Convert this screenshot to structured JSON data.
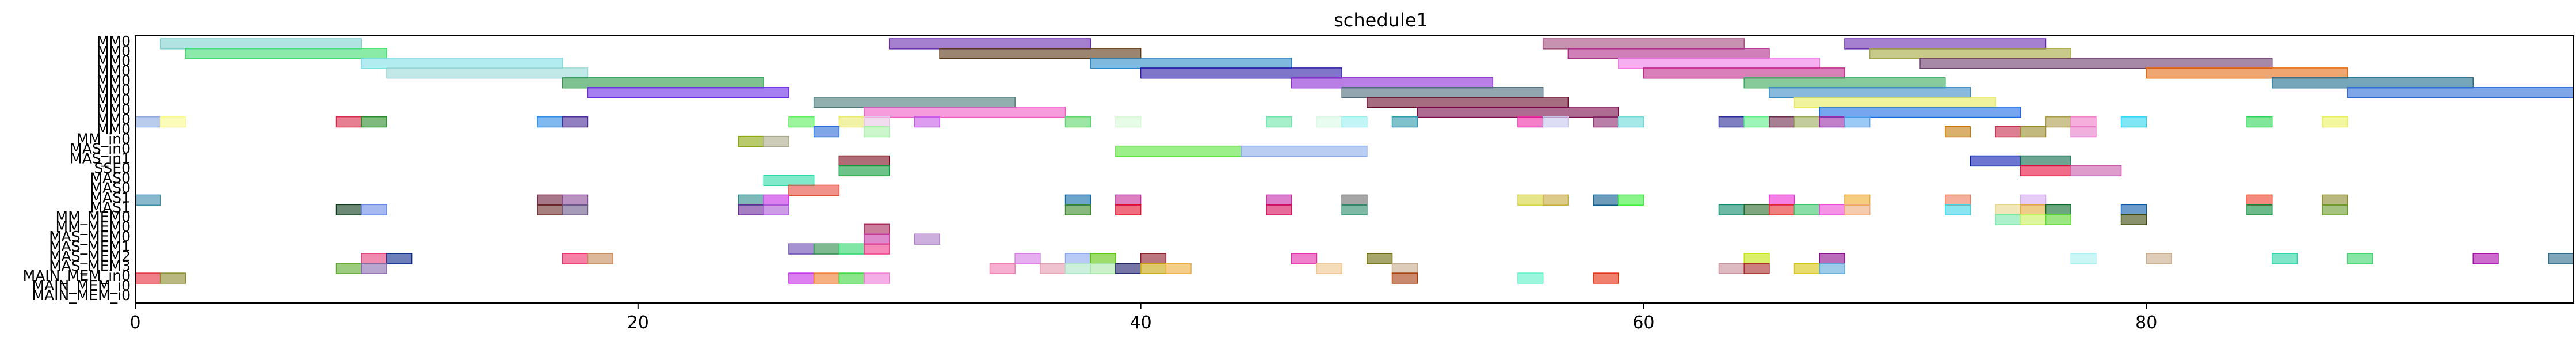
{
  "chart_data": {
    "type": "gantt",
    "title": "schedule1",
    "xlabel": "",
    "ylabel": "",
    "xlim": [
      0,
      97
    ],
    "xticks": [
      0,
      20,
      40,
      60,
      80
    ],
    "grid": false,
    "rows": [
      "MM0",
      "MM0",
      "MM0",
      "MM0",
      "MM0",
      "MM0",
      "MM0",
      "MM0",
      "MM0",
      "MM0",
      "MM_in0",
      "MAS_in0",
      "MAS_in1",
      "SSE0",
      "MAS0",
      "MAS0",
      "MAS1",
      "MAS1",
      "MM_MEM0",
      "MM_MEM0",
      "MAS_MEM0",
      "MAS_MEM1",
      "MAS_MEM2",
      "MAS_MEM3",
      "MAIN_MEM_in0",
      "MAIN_MEM_i0",
      "MAIN_MEM_i0"
    ],
    "tasks": [
      {
        "row": 0,
        "start": 1,
        "end": 9,
        "color": "#7fd1d1"
      },
      {
        "row": 0,
        "start": 30,
        "end": 38,
        "color": "#6a2bb0"
      },
      {
        "row": 0,
        "start": 56,
        "end": 64,
        "color": "#a04a7a"
      },
      {
        "row": 0,
        "start": 68,
        "end": 76,
        "color": "#6a2bb0"
      },
      {
        "row": 1,
        "start": 2,
        "end": 10,
        "color": "#3cdc6c"
      },
      {
        "row": 1,
        "start": 32,
        "end": 40,
        "color": "#5a3410"
      },
      {
        "row": 1,
        "start": 57,
        "end": 65,
        "color": "#b02a8a"
      },
      {
        "row": 1,
        "start": 69,
        "end": 77,
        "color": "#a3a63a"
      },
      {
        "row": 2,
        "start": 9,
        "end": 17,
        "color": "#7fe0e6"
      },
      {
        "row": 2,
        "start": 38,
        "end": 46,
        "color": "#2a8ac6"
      },
      {
        "row": 2,
        "start": 59,
        "end": 67,
        "color": "#f07ae8"
      },
      {
        "row": 2,
        "start": 71,
        "end": 85,
        "color": "#6a3a6a"
      },
      {
        "row": 3,
        "start": 10,
        "end": 18,
        "color": "#9ad8d8"
      },
      {
        "row": 3,
        "start": 40,
        "end": 48,
        "color": "#2a1aa6"
      },
      {
        "row": 3,
        "start": 60,
        "end": 68,
        "color": "#c02a8a"
      },
      {
        "row": 3,
        "start": 80,
        "end": 88,
        "color": "#e66a10"
      },
      {
        "row": 4,
        "start": 17,
        "end": 25,
        "color": "#2a9a4a"
      },
      {
        "row": 4,
        "start": 46,
        "end": 54,
        "color": "#8a2ad6"
      },
      {
        "row": 4,
        "start": 64,
        "end": 72,
        "color": "#3aaa5a"
      },
      {
        "row": 4,
        "start": 85,
        "end": 93,
        "color": "#1a6a8a"
      },
      {
        "row": 5,
        "start": 18,
        "end": 26,
        "color": "#6a2ae6"
      },
      {
        "row": 5,
        "start": 48,
        "end": 56,
        "color": "#4a6a7a"
      },
      {
        "row": 5,
        "start": 65,
        "end": 73,
        "color": "#3a8ac6"
      },
      {
        "row": 5,
        "start": 88,
        "end": 97,
        "color": "#2a6ad6"
      },
      {
        "row": 6,
        "start": 27,
        "end": 35,
        "color": "#4a7a7a"
      },
      {
        "row": 6,
        "start": 49,
        "end": 57,
        "color": "#6a0a2a"
      },
      {
        "row": 6,
        "start": 66,
        "end": 74,
        "color": "#e6ea5a"
      },
      {
        "row": 7,
        "start": 29,
        "end": 37,
        "color": "#f05ac6"
      },
      {
        "row": 7,
        "start": 51,
        "end": 59,
        "color": "#7a0a4a"
      },
      {
        "row": 7,
        "start": 67,
        "end": 75,
        "color": "#1a6ae6"
      },
      {
        "row": 8,
        "start": 0,
        "end": 1,
        "color": "#8aaade"
      },
      {
        "row": 8,
        "start": 1,
        "end": 2,
        "color": "#fafa8a"
      },
      {
        "row": 8,
        "start": 8,
        "end": 9,
        "color": "#d62a4a"
      },
      {
        "row": 8,
        "start": 9,
        "end": 10,
        "color": "#2a8a2a"
      },
      {
        "row": 8,
        "start": 16,
        "end": 17,
        "color": "#2a8ae6"
      },
      {
        "row": 8,
        "start": 17,
        "end": 18,
        "color": "#4a2a9a"
      },
      {
        "row": 8,
        "start": 26,
        "end": 27,
        "color": "#5af05a"
      },
      {
        "row": 8,
        "start": 28,
        "end": 29,
        "color": "#eaea6a"
      },
      {
        "row": 8,
        "start": 29,
        "end": 30,
        "color": "#eac6e6"
      },
      {
        "row": 8,
        "start": 31,
        "end": 32,
        "color": "#c65ae6"
      },
      {
        "row": 8,
        "start": 37,
        "end": 38,
        "color": "#5ad66a"
      },
      {
        "row": 8,
        "start": 39,
        "end": 40,
        "color": "#d6fad6"
      },
      {
        "row": 8,
        "start": 45,
        "end": 46,
        "color": "#6ae6aa"
      },
      {
        "row": 8,
        "start": 47,
        "end": 48,
        "color": "#dafae6"
      },
      {
        "row": 8,
        "start": 48,
        "end": 49,
        "color": "#9af0f0"
      },
      {
        "row": 8,
        "start": 50,
        "end": 51,
        "color": "#2a9aaa"
      },
      {
        "row": 8,
        "start": 55,
        "end": 56,
        "color": "#f02aa6"
      },
      {
        "row": 8,
        "start": 56,
        "end": 57,
        "color": "#c6c6f0"
      },
      {
        "row": 8,
        "start": 58,
        "end": 59,
        "color": "#8a2a6a"
      },
      {
        "row": 8,
        "start": 59,
        "end": 60,
        "color": "#6adada"
      },
      {
        "row": 8,
        "start": 63,
        "end": 64,
        "color": "#2a2a9a"
      },
      {
        "row": 8,
        "start": 64,
        "end": 65,
        "color": "#5af08a"
      },
      {
        "row": 8,
        "start": 65,
        "end": 66,
        "color": "#6a2a4a"
      },
      {
        "row": 8,
        "start": 66,
        "end": 67,
        "color": "#9aaa5a"
      },
      {
        "row": 8,
        "start": 67,
        "end": 68,
        "color": "#9a2aa6"
      },
      {
        "row": 8,
        "start": 68,
        "end": 69,
        "color": "#5aa6f0"
      },
      {
        "row": 8,
        "start": 76,
        "end": 77,
        "color": "#aa9a4a"
      },
      {
        "row": 8,
        "start": 77,
        "end": 78,
        "color": "#f07ac6"
      },
      {
        "row": 8,
        "start": 79,
        "end": 80,
        "color": "#2ad6f0"
      },
      {
        "row": 8,
        "start": 84,
        "end": 85,
        "color": "#2ad65a"
      },
      {
        "row": 8,
        "start": 87,
        "end": 88,
        "color": "#eaf05a"
      },
      {
        "row": 9,
        "start": 27,
        "end": 28,
        "color": "#2a6ad6"
      },
      {
        "row": 9,
        "start": 29,
        "end": 30,
        "color": "#aaf0aa"
      },
      {
        "row": 9,
        "start": 72,
        "end": 73,
        "color": "#c67a0a"
      },
      {
        "row": 9,
        "start": 74,
        "end": 75,
        "color": "#c62a4a"
      },
      {
        "row": 9,
        "start": 75,
        "end": 76,
        "color": "#9a8a2a"
      },
      {
        "row": 9,
        "start": 77,
        "end": 78,
        "color": "#e67ac6"
      },
      {
        "row": 10,
        "start": 24,
        "end": 25,
        "color": "#8aa60a"
      },
      {
        "row": 10,
        "start": 25,
        "end": 26,
        "color": "#aaaa8a"
      },
      {
        "row": 11,
        "start": 39,
        "end": 44,
        "color": "#5ae63a"
      },
      {
        "row": 11,
        "start": 44,
        "end": 49,
        "color": "#8aaaea"
      },
      {
        "row": 12,
        "start": 28,
        "end": 30,
        "color": "#7a0a1a"
      },
      {
        "row": 12,
        "start": 73,
        "end": 75,
        "color": "#0a1ab0"
      },
      {
        "row": 12,
        "start": 75,
        "end": 77,
        "color": "#0a6a4a"
      },
      {
        "row": 13,
        "start": 28,
        "end": 30,
        "color": "#0a9a3a"
      },
      {
        "row": 13,
        "start": 75,
        "end": 77,
        "color": "#e60a3a"
      },
      {
        "row": 13,
        "start": 77,
        "end": 79,
        "color": "#c65aaa"
      },
      {
        "row": 14,
        "start": 25,
        "end": 27,
        "color": "#2adaa6"
      },
      {
        "row": 15,
        "start": 26,
        "end": 28,
        "color": "#e64a3a"
      },
      {
        "row": 16,
        "start": 0,
        "end": 1,
        "color": "#3a8aaa"
      },
      {
        "row": 16,
        "start": 16,
        "end": 17,
        "color": "#6a1a3a"
      },
      {
        "row": 16,
        "start": 17,
        "end": 18,
        "color": "#8a4a9a"
      },
      {
        "row": 16,
        "start": 24,
        "end": 25,
        "color": "#2a8a8a"
      },
      {
        "row": 16,
        "start": 25,
        "end": 26,
        "color": "#c62ae6"
      },
      {
        "row": 16,
        "start": 37,
        "end": 38,
        "color": "#0a6aaa"
      },
      {
        "row": 16,
        "start": 39,
        "end": 40,
        "color": "#c62a9a"
      },
      {
        "row": 16,
        "start": 45,
        "end": 46,
        "color": "#c62aa6"
      },
      {
        "row": 16,
        "start": 48,
        "end": 49,
        "color": "#6a6a6a"
      },
      {
        "row": 16,
        "start": 55,
        "end": 56,
        "color": "#d6d63a"
      },
      {
        "row": 16,
        "start": 56,
        "end": 57,
        "color": "#c6aa3a"
      },
      {
        "row": 16,
        "start": 58,
        "end": 59,
        "color": "#0a5a8a"
      },
      {
        "row": 16,
        "start": 59,
        "end": 60,
        "color": "#3af03a"
      },
      {
        "row": 16,
        "start": 65,
        "end": 66,
        "color": "#f02ad6"
      },
      {
        "row": 16,
        "start": 68,
        "end": 69,
        "color": "#f0aa2a"
      },
      {
        "row": 16,
        "start": 72,
        "end": 73,
        "color": "#f07a5a"
      },
      {
        "row": 16,
        "start": 75,
        "end": 76,
        "color": "#d6aaf0"
      },
      {
        "row": 16,
        "start": 84,
        "end": 85,
        "color": "#f03a2a"
      },
      {
        "row": 16,
        "start": 87,
        "end": 88,
        "color": "#8a8a2a"
      },
      {
        "row": 17,
        "start": 8,
        "end": 9,
        "color": "#0a3a1a"
      },
      {
        "row": 17,
        "start": 9,
        "end": 10,
        "color": "#6a8ae6"
      },
      {
        "row": 17,
        "start": 16,
        "end": 17,
        "color": "#6a2a2a"
      },
      {
        "row": 17,
        "start": 17,
        "end": 18,
        "color": "#6a5a8a"
      },
      {
        "row": 17,
        "start": 24,
        "end": 25,
        "color": "#6a2a9a"
      },
      {
        "row": 17,
        "start": 25,
        "end": 26,
        "color": "#aa5ad6"
      },
      {
        "row": 17,
        "start": 37,
        "end": 38,
        "color": "#3a8a2a"
      },
      {
        "row": 17,
        "start": 39,
        "end": 40,
        "color": "#e60a2a"
      },
      {
        "row": 17,
        "start": 45,
        "end": 46,
        "color": "#d60a5a"
      },
      {
        "row": 17,
        "start": 48,
        "end": 49,
        "color": "#2a8a6a"
      },
      {
        "row": 17,
        "start": 63,
        "end": 64,
        "color": "#0a8a6a"
      },
      {
        "row": 17,
        "start": 64,
        "end": 65,
        "color": "#2a6a2a"
      },
      {
        "row": 17,
        "start": 65,
        "end": 66,
        "color": "#e62a2a"
      },
      {
        "row": 17,
        "start": 66,
        "end": 67,
        "color": "#3ac66a"
      },
      {
        "row": 17,
        "start": 67,
        "end": 68,
        "color": "#f04ad6"
      },
      {
        "row": 17,
        "start": 68,
        "end": 69,
        "color": "#f0aa7a"
      },
      {
        "row": 17,
        "start": 72,
        "end": 73,
        "color": "#3ad6e6"
      },
      {
        "row": 17,
        "start": 74,
        "end": 75,
        "color": "#e6d68a"
      },
      {
        "row": 17,
        "start": 75,
        "end": 76,
        "color": "#e6aa3a"
      },
      {
        "row": 17,
        "start": 76,
        "end": 77,
        "color": "#0a6a2a"
      },
      {
        "row": 17,
        "start": 79,
        "end": 80,
        "color": "#0a5aaa"
      },
      {
        "row": 17,
        "start": 84,
        "end": 85,
        "color": "#0a8a3a"
      },
      {
        "row": 17,
        "start": 87,
        "end": 88,
        "color": "#6a9a2a"
      },
      {
        "row": 18,
        "start": 74,
        "end": 75,
        "color": "#7ae6aa"
      },
      {
        "row": 18,
        "start": 75,
        "end": 76,
        "color": "#c6f05a"
      },
      {
        "row": 18,
        "start": 76,
        "end": 77,
        "color": "#5ad62a"
      },
      {
        "row": 18,
        "start": 79,
        "end": 80,
        "color": "#3a4a0a"
      },
      {
        "row": 19,
        "start": 29,
        "end": 30,
        "color": "#aa2a5a"
      },
      {
        "row": 20,
        "start": 29,
        "end": 30,
        "color": "#c63aaa"
      },
      {
        "row": 20,
        "start": 31,
        "end": 32,
        "color": "#aa7ac6"
      },
      {
        "row": 21,
        "start": 26,
        "end": 27,
        "color": "#6a4ab0"
      },
      {
        "row": 21,
        "start": 27,
        "end": 28,
        "color": "#2a8a4a"
      },
      {
        "row": 21,
        "start": 28,
        "end": 29,
        "color": "#2ad66a"
      },
      {
        "row": 21,
        "start": 29,
        "end": 30,
        "color": "#f03a8a"
      },
      {
        "row": 22,
        "start": 9,
        "end": 10,
        "color": "#e6407a"
      },
      {
        "row": 22,
        "start": 10,
        "end": 11,
        "color": "#0a2a8a"
      },
      {
        "row": 22,
        "start": 17,
        "end": 18,
        "color": "#f02a6a"
      },
      {
        "row": 22,
        "start": 18,
        "end": 19,
        "color": "#c68a5a"
      },
      {
        "row": 22,
        "start": 35,
        "end": 36,
        "color": "#d67ae6"
      },
      {
        "row": 22,
        "start": 37,
        "end": 38,
        "color": "#8aa6f0"
      },
      {
        "row": 22,
        "start": 38,
        "end": 39,
        "color": "#5ac60a"
      },
      {
        "row": 22,
        "start": 40,
        "end": 41,
        "color": "#8a1a2a"
      },
      {
        "row": 22,
        "start": 46,
        "end": 47,
        "color": "#e62aaa"
      },
      {
        "row": 22,
        "start": 49,
        "end": 50,
        "color": "#6a6a0a"
      },
      {
        "row": 22,
        "start": 64,
        "end": 65,
        "color": "#c6e60a"
      },
      {
        "row": 22,
        "start": 67,
        "end": 68,
        "color": "#8a0a8a"
      },
      {
        "row": 22,
        "start": 77,
        "end": 78,
        "color": "#a6f0f0"
      },
      {
        "row": 22,
        "start": 80,
        "end": 81,
        "color": "#caaa8a"
      },
      {
        "row": 22,
        "start": 85,
        "end": 86,
        "color": "#2ad6a6"
      },
      {
        "row": 22,
        "start": 88,
        "end": 89,
        "color": "#3ad66a"
      },
      {
        "row": 22,
        "start": 93,
        "end": 94,
        "color": "#aa0aaa"
      },
      {
        "row": 22,
        "start": 96,
        "end": 97,
        "color": "#2a6a8a"
      },
      {
        "row": 23,
        "start": 8,
        "end": 9,
        "color": "#5aaa2a"
      },
      {
        "row": 23,
        "start": 9,
        "end": 10,
        "color": "#8a6ab0"
      },
      {
        "row": 23,
        "start": 34,
        "end": 35,
        "color": "#f07ab0"
      },
      {
        "row": 23,
        "start": 36,
        "end": 37,
        "color": "#e69ab0"
      },
      {
        "row": 23,
        "start": 37,
        "end": 38,
        "color": "#aae6c6"
      },
      {
        "row": 23,
        "start": 38,
        "end": 39,
        "color": "#aae6a6"
      },
      {
        "row": 23,
        "start": 39,
        "end": 40,
        "color": "#1a1a6a"
      },
      {
        "row": 23,
        "start": 40,
        "end": 41,
        "color": "#c6a60a"
      },
      {
        "row": 23,
        "start": 41,
        "end": 42,
        "color": "#f0aa3a"
      },
      {
        "row": 23,
        "start": 47,
        "end": 48,
        "color": "#f0c68a"
      },
      {
        "row": 23,
        "start": 50,
        "end": 51,
        "color": "#c6aa8a"
      },
      {
        "row": 23,
        "start": 63,
        "end": 64,
        "color": "#c68a9a"
      },
      {
        "row": 23,
        "start": 64,
        "end": 65,
        "color": "#aa2a2a"
      },
      {
        "row": 23,
        "start": 66,
        "end": 67,
        "color": "#d6c60a"
      },
      {
        "row": 23,
        "start": 67,
        "end": 68,
        "color": "#5aaada"
      },
      {
        "row": 24,
        "start": 0,
        "end": 1,
        "color": "#e62a3a"
      },
      {
        "row": 24,
        "start": 1,
        "end": 2,
        "color": "#8a8a2a"
      },
      {
        "row": 24,
        "start": 26,
        "end": 27,
        "color": "#c62ae6"
      },
      {
        "row": 24,
        "start": 27,
        "end": 28,
        "color": "#f07a2a"
      },
      {
        "row": 24,
        "start": 28,
        "end": 29,
        "color": "#3ad63a"
      },
      {
        "row": 24,
        "start": 29,
        "end": 30,
        "color": "#f07ad6"
      },
      {
        "row": 24,
        "start": 50,
        "end": 51,
        "color": "#a63a0a"
      },
      {
        "row": 24,
        "start": 55,
        "end": 56,
        "color": "#5af0c6"
      },
      {
        "row": 24,
        "start": 58,
        "end": 59,
        "color": "#e62a0a"
      }
    ]
  }
}
